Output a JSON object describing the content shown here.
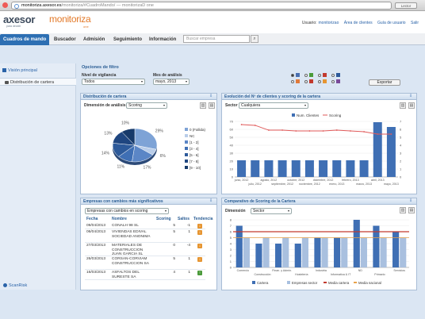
{
  "browser": {
    "url_host": "monitoriza.axesor.es",
    "url_path": "/monitoriza/#CuadroMando/",
    "url_tail": " — monitorizaD one",
    "btn_label": "Lector"
  },
  "header": {
    "logo_main": "axesor",
    "logo_sub": "para decidir",
    "logo_product": "monitoriza",
    "logo_product_sub": "one",
    "user_label": "Usuario:",
    "user_name": "monitorizao",
    "links": [
      "Área de clientes",
      "Guía de usuario",
      "Salir"
    ]
  },
  "nav": {
    "tabs": [
      "Cuadros de mando",
      "Buscador",
      "Admisión",
      "Seguimiento",
      "Información"
    ],
    "active_tab": 0,
    "search_placeholder": "Buscar empresa"
  },
  "sidebar": {
    "items": [
      "Visión principal",
      "Distribución de cartera"
    ],
    "footer": "ScanRisk"
  },
  "filter": {
    "title": "Opciones de filtro",
    "nivel_label": "Nivel de vigilancia",
    "nivel_value": "Todos",
    "mes_label": "Mes de análisis",
    "mes_value": "mayo, 2013",
    "export_label": "Exportar"
  },
  "distribucion": {
    "title": "Distribución de cartera",
    "dim_label": "Dimensión de análisis",
    "dim_value": "Scoring",
    "chart_data": {
      "type": "pie",
      "labels": [
        "0 (Fallida)",
        "NC",
        "[1 - 2]",
        "[3 - 4]",
        "[5 - 6]",
        "[7 - 8]",
        "[9 - 10]"
      ],
      "values": [
        29,
        6,
        17,
        11,
        14,
        13,
        10
      ],
      "slice_labels": [
        "29%",
        "6%",
        "17%",
        "11%",
        "14%",
        "13%",
        "10%"
      ],
      "colors": [
        "#7ea3d6",
        "#b9cde9",
        "#5b86c6",
        "#3f6fb4",
        "#2d5a9a",
        "#1f4680",
        "#173a6a"
      ]
    }
  },
  "evolucion": {
    "title": "Evolución del Nº de clientes y scoring de la cartera",
    "sector_label": "Sector",
    "sector_value": "Cualquiera",
    "chart_data": {
      "type": "bar",
      "categories": [
        "junio, 2012",
        "julio, 2012",
        "agosto, 2012",
        "septiembre, 2012",
        "octubre, 2012",
        "noviembre, 2012",
        "diciembre, 2012",
        "enero, 2013",
        "febrero, 2013",
        "marzo, 2013",
        "abril, 2013",
        "mayo, 2013"
      ],
      "series": [
        {
          "name": "Num. Clientes",
          "values": [
            21,
            21,
            21,
            21,
            21,
            21,
            21,
            21,
            21,
            21,
            69,
            63
          ],
          "color": "#3f6fb4"
        },
        {
          "name": "Scoring",
          "values": [
            6.6,
            6.5,
            5.9,
            5.9,
            5.8,
            5.8,
            5.8,
            5.9,
            5.8,
            5.7,
            5.4,
            5.4
          ],
          "color": "#e05a5a"
        }
      ],
      "ylim_left": [
        0,
        70
      ],
      "ylim_right": [
        0,
        7
      ]
    }
  },
  "cambios": {
    "title": "Empresas con cambios más significativos",
    "select_value": "Empresas con cambios en scoring",
    "columns": [
      "Fecha",
      "Nombre",
      "Scoring",
      "Saltos",
      "Tendencia"
    ],
    "rows": [
      {
        "fecha": "09/04/2013",
        "nombre": "CONALH 98 SL",
        "scoring": "5",
        "saltos": "-1",
        "trend": "down"
      },
      {
        "fecha": "06/04/2013",
        "nombre": "VIVIENDAS EDIVAL SOCIEDAD ANONIMA",
        "scoring": "5",
        "saltos": "1",
        "trend": "down"
      },
      {
        "fecha": "27/03/2013",
        "nombre": "MATERIALES DE CONSTRUCCION JUAN GARCIA SL",
        "scoring": "0",
        "saltos": "-4",
        "trend": "down"
      },
      {
        "fecha": "26/03/2013",
        "nombre": "CORSAN-CORVIAM CONSTRUCCION SA",
        "scoring": "5",
        "saltos": "1",
        "trend": "down"
      },
      {
        "fecha": "16/03/2013",
        "nombre": "ASFALTOS DEL SURESTE SA",
        "scoring": "4",
        "saltos": "1",
        "trend": "up"
      }
    ]
  },
  "comparativo": {
    "title": "Comparativo de Scoring de la Cartera",
    "dim_label": "Dimensión",
    "dim_value": "Sector",
    "chart_data": {
      "type": "bar",
      "categories": [
        "Comercio",
        "Construcción",
        "Finan. y Admin.",
        "Hostelería",
        "Industria",
        "Informatica & IT",
        "ND",
        "Primario",
        "Servicios"
      ],
      "series": [
        {
          "name": "Cartera",
          "values": [
            7,
            4,
            4,
            4,
            5,
            5,
            8,
            7,
            6
          ],
          "color": "#3f6fb4"
        },
        {
          "name": "Empresas sector",
          "values": [
            5,
            5,
            5,
            5,
            5,
            5,
            5,
            5,
            5
          ],
          "color": "#a9c0df"
        },
        {
          "name": "Media cartera",
          "value": 6,
          "color": "#c23a2e"
        },
        {
          "name": "Media nacional",
          "value": 5,
          "color": "#e8a24a"
        }
      ],
      "ylim": [
        0,
        8
      ]
    }
  }
}
